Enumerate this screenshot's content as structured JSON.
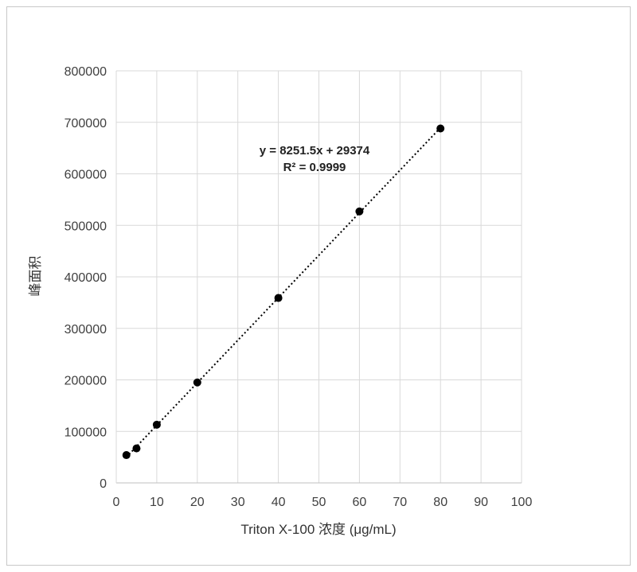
{
  "chart_data": {
    "type": "scatter",
    "x": [
      2.5,
      5,
      10,
      20,
      40,
      60,
      80
    ],
    "y": [
      54000,
      67000,
      113000,
      195000,
      359000,
      527000,
      688000
    ],
    "xlabel": "Triton X-100 浓度 (μg/mL)",
    "ylabel": "峰面积",
    "xlim": [
      0,
      100
    ],
    "ylim": [
      0,
      800000
    ],
    "xticks": [
      "0",
      "10",
      "20",
      "30",
      "40",
      "50",
      "60",
      "70",
      "80",
      "90",
      "100"
    ],
    "yticks": [
      "0",
      "100000",
      "200000",
      "300000",
      "400000",
      "500000",
      "600000",
      "700000",
      "800000"
    ],
    "trendline": {
      "slope": 8251.5,
      "intercept": 29374,
      "x_range": [
        2.5,
        80
      ],
      "equation_label": "y = 8251.5x + 29374",
      "r2_label": "R² = 0.9999"
    },
    "grid": true,
    "legend": "none",
    "marker_color": "#000000",
    "grid_color": "#d9d9d9"
  }
}
